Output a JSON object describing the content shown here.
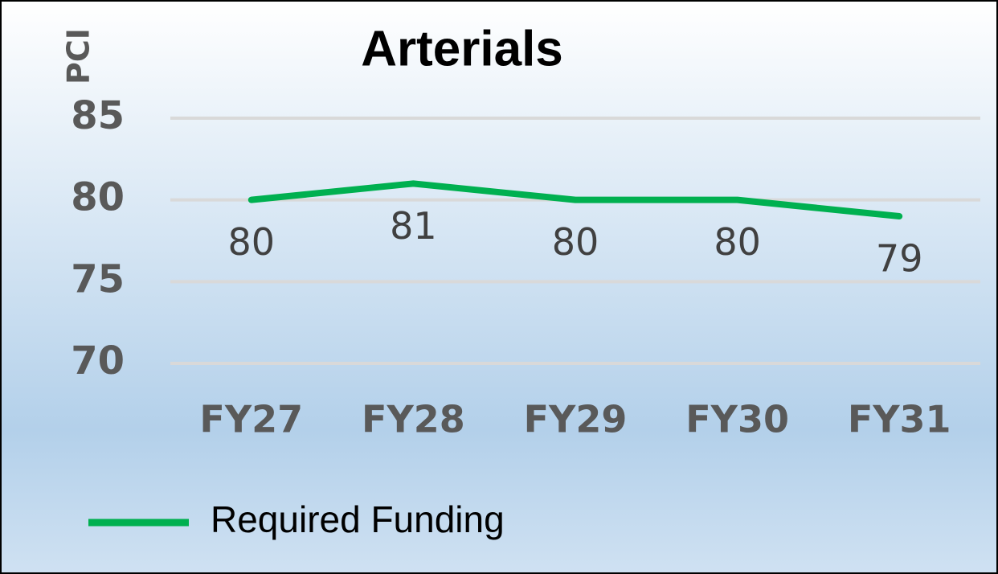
{
  "chart_data": {
    "type": "line",
    "title": "Arterials",
    "y_label": "PCI",
    "categories": [
      "FY27",
      "FY28",
      "FY29",
      "FY30",
      "FY31"
    ],
    "series": [
      {
        "name": "Required Funding",
        "color": "#00b050",
        "values": [
          80,
          81,
          80,
          80,
          79
        ]
      }
    ],
    "ylim": [
      70,
      85
    ],
    "yticks": [
      70,
      75,
      80,
      85
    ],
    "grid": true,
    "legend": "bottom"
  }
}
